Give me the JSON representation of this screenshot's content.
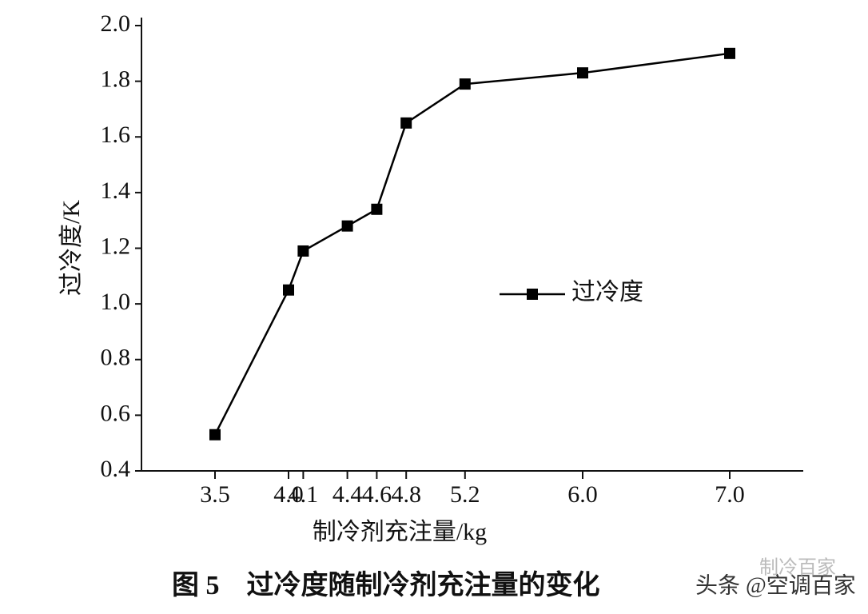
{
  "chart_data": {
    "type": "line",
    "x_label": "制冷剂充注量/kg",
    "y_label": "过冷度/K",
    "caption": "图 5　过冷度随制冷剂充注量的变化",
    "watermark": "头条 @空调百家",
    "watermark2": "制冷百家",
    "x": [
      3.5,
      4.0,
      4.1,
      4.4,
      4.6,
      4.8,
      5.2,
      6.0,
      7.0
    ],
    "series": [
      {
        "name": "过冷度",
        "color": "#000000",
        "values": [
          0.53,
          1.05,
          1.19,
          1.28,
          1.34,
          1.65,
          1.79,
          1.83,
          1.9
        ]
      }
    ],
    "xlim": [
      3.0,
      7.5
    ],
    "xticks": [
      3.5,
      {
        "value": 4.0,
        "label": "4.0"
      },
      4.1,
      4.4,
      4.6,
      4.8,
      5.2,
      {
        "value": 6.0,
        "label": "6.0"
      },
      {
        "value": 7.0,
        "label": "7.0"
      }
    ],
    "ylim": [
      0.4,
      2.0
    ],
    "yticks": [
      0.4,
      0.6,
      0.8,
      {
        "value": 1.0,
        "label": "1.0"
      },
      1.2,
      1.4,
      1.6,
      1.8,
      {
        "value": 2.0,
        "label": "2.0"
      }
    ],
    "legend": "right"
  }
}
